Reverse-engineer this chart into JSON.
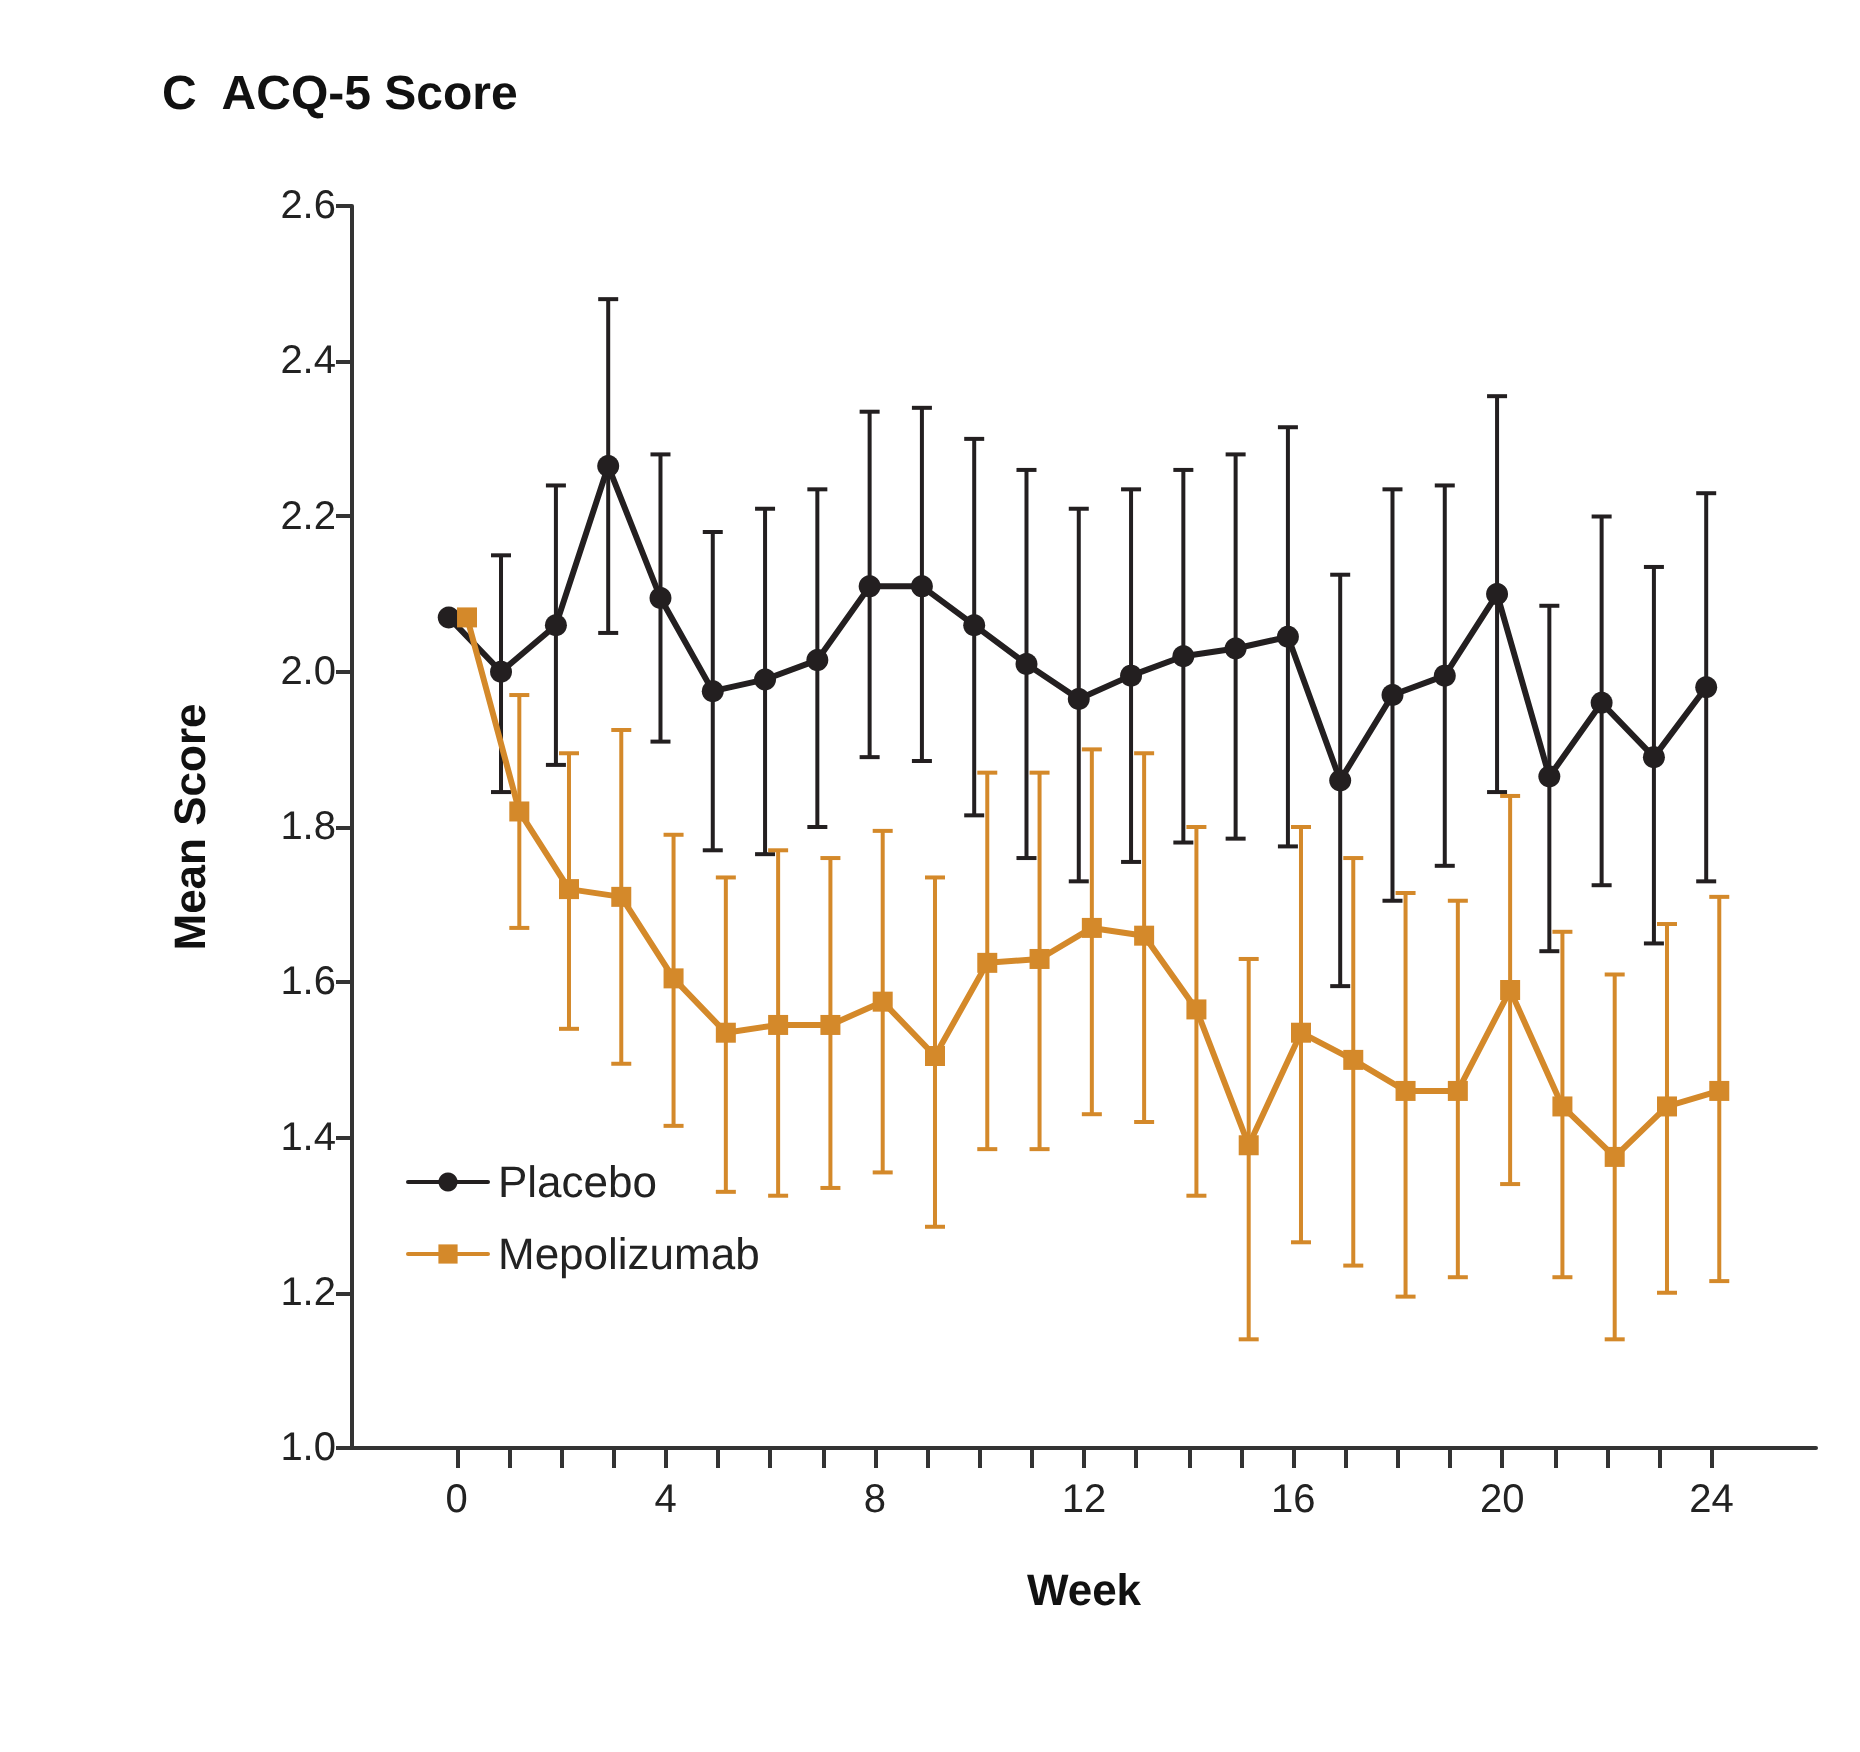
{
  "chart_data": {
    "type": "line",
    "title": "C  ACQ-5 Score",
    "xlabel": "Week",
    "ylabel": "Mean Score",
    "xlim": [
      -2,
      26
    ],
    "ylim": [
      1.0,
      2.6
    ],
    "xticks": [
      0,
      {
        "value": 1,
        "label": null
      },
      {
        "value": 2,
        "label": null
      },
      {
        "value": 3,
        "label": null
      },
      4,
      {
        "value": 5,
        "label": null
      },
      {
        "value": 6,
        "label": null
      },
      {
        "value": 7,
        "label": null
      },
      8,
      {
        "value": 9,
        "label": null
      },
      {
        "value": 10,
        "label": null
      },
      {
        "value": 11,
        "label": null
      },
      12,
      {
        "value": 13,
        "label": null
      },
      {
        "value": 14,
        "label": null
      },
      {
        "value": 15,
        "label": null
      },
      16,
      {
        "value": 17,
        "label": null
      },
      {
        "value": 18,
        "label": null
      },
      {
        "value": 19,
        "label": null
      },
      20,
      {
        "value": 21,
        "label": null
      },
      {
        "value": 22,
        "label": null
      },
      {
        "value": 23,
        "label": null
      },
      24
    ],
    "yticks": [
      {
        "value": 1.0,
        "label": "1.0"
      },
      1.2,
      1.4,
      1.6,
      1.8,
      {
        "value": 2.0,
        "label": "2.0"
      },
      2.2,
      2.4,
      2.6
    ],
    "grid": false,
    "legend": "bottom left",
    "line_style": "solid",
    "series": [
      {
        "name": "Placebo",
        "color": "#231f20",
        "marker": "circle",
        "x": [
          -0.15,
          0.85,
          1.9,
          2.9,
          3.9,
          4.9,
          5.9,
          6.9,
          7.9,
          8.9,
          9.9,
          10.9,
          11.9,
          12.9,
          13.9,
          14.9,
          15.9,
          16.9,
          17.9,
          18.9,
          19.9,
          20.9,
          21.9,
          22.9,
          23.9
        ],
        "values": [
          2.07,
          2.0,
          2.06,
          2.265,
          2.095,
          1.975,
          1.99,
          2.015,
          2.11,
          2.11,
          2.06,
          2.01,
          1.965,
          1.995,
          2.02,
          2.03,
          2.045,
          1.86,
          1.97,
          1.995,
          2.1,
          1.865,
          1.96,
          1.89,
          1.98
        ],
        "errors": [
          null,
          [
            1.845,
            2.15
          ],
          [
            1.88,
            2.24
          ],
          [
            2.05,
            2.48
          ],
          [
            1.91,
            2.28
          ],
          [
            1.77,
            2.18
          ],
          [
            1.765,
            2.21
          ],
          [
            1.8,
            2.235
          ],
          [
            1.89,
            2.335
          ],
          [
            1.885,
            2.34
          ],
          [
            1.815,
            2.3
          ],
          [
            1.76,
            2.26
          ],
          [
            1.73,
            2.21
          ],
          [
            1.755,
            2.235
          ],
          [
            1.78,
            2.26
          ],
          [
            1.785,
            2.28
          ],
          [
            1.775,
            2.315
          ],
          [
            1.595,
            2.125
          ],
          [
            1.705,
            2.235
          ],
          [
            1.75,
            2.24
          ],
          [
            1.845,
            2.355
          ],
          [
            1.64,
            2.085
          ],
          [
            1.725,
            2.2
          ],
          [
            1.65,
            2.135
          ],
          [
            1.73,
            2.23
          ]
        ]
      },
      {
        "name": "Mepolizumab",
        "color": "#d4892a",
        "marker": "square",
        "x": [
          0.2,
          1.2,
          2.15,
          3.15,
          4.15,
          5.15,
          6.15,
          7.15,
          8.15,
          9.15,
          10.15,
          11.15,
          12.15,
          13.15,
          14.15,
          15.15,
          16.15,
          17.15,
          18.15,
          19.15,
          20.15,
          21.15,
          22.15,
          23.15,
          24.15
        ],
        "values": [
          2.07,
          1.82,
          1.72,
          1.71,
          1.605,
          1.535,
          1.545,
          1.545,
          1.575,
          1.505,
          1.625,
          1.63,
          1.67,
          1.66,
          1.565,
          1.39,
          1.535,
          1.5,
          1.46,
          1.46,
          1.59,
          1.44,
          1.375,
          1.44,
          1.46
        ],
        "errors": [
          null,
          [
            1.67,
            1.97
          ],
          [
            1.54,
            1.895
          ],
          [
            1.495,
            1.925
          ],
          [
            1.415,
            1.79
          ],
          [
            1.33,
            1.735
          ],
          [
            1.325,
            1.77
          ],
          [
            1.335,
            1.76
          ],
          [
            1.355,
            1.795
          ],
          [
            1.285,
            1.735
          ],
          [
            1.385,
            1.87
          ],
          [
            1.385,
            1.87
          ],
          [
            1.43,
            1.9
          ],
          [
            1.42,
            1.895
          ],
          [
            1.325,
            1.8
          ],
          [
            1.14,
            1.63
          ],
          [
            1.265,
            1.8
          ],
          [
            1.235,
            1.76
          ],
          [
            1.195,
            1.715
          ],
          [
            1.22,
            1.705
          ],
          [
            1.34,
            1.84
          ],
          [
            1.22,
            1.665
          ],
          [
            1.14,
            1.61
          ],
          [
            1.2,
            1.675
          ],
          [
            1.215,
            1.71
          ]
        ]
      }
    ]
  }
}
